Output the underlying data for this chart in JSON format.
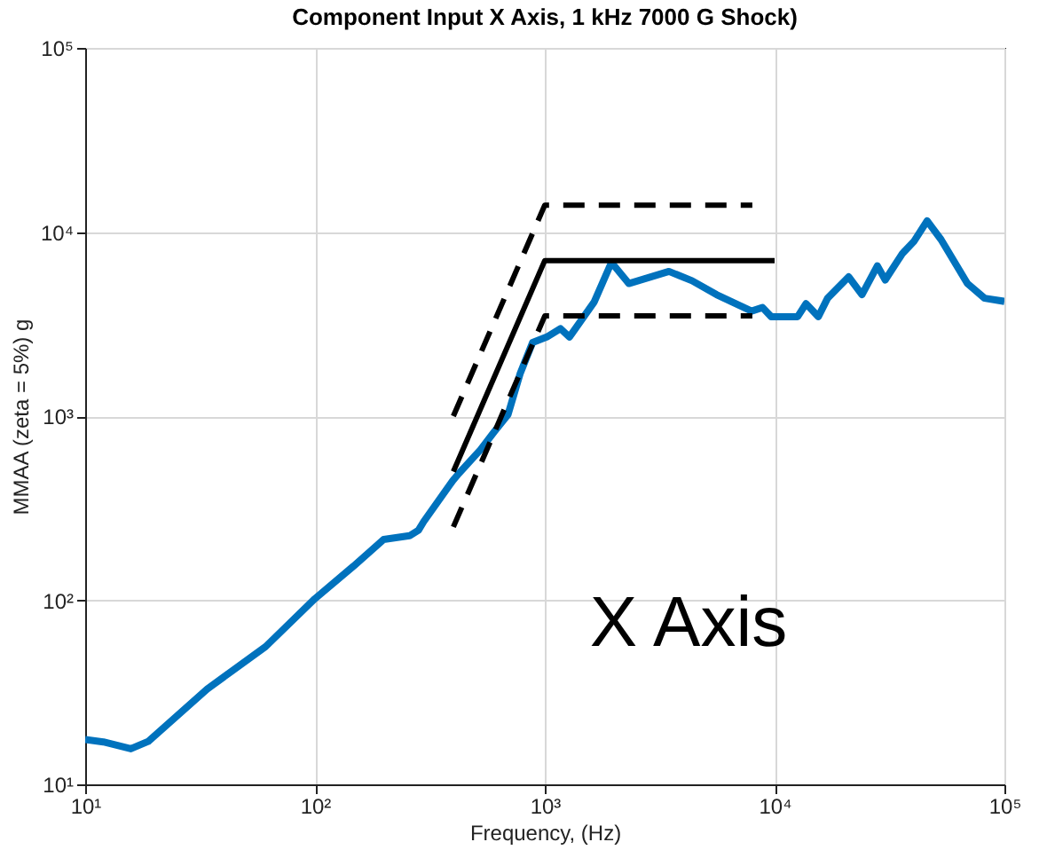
{
  "chart_data": {
    "type": "line",
    "title": "Component Input X Axis, 1 kHz 7000 G Shock)",
    "xlabel": "Frequency, (Hz)",
    "ylabel": "MMAA (zeta = 5%) g",
    "log": "xy",
    "grid": true,
    "xlim": [
      10,
      100000
    ],
    "ylim": [
      10,
      100000
    ],
    "xticks": [
      {
        "value": 10,
        "label": "10¹"
      },
      {
        "value": 100,
        "label": "10²"
      },
      {
        "value": 1000,
        "label": "10³"
      },
      {
        "value": 10000,
        "label": "10⁴"
      },
      {
        "value": 100000,
        "label": "10⁵"
      }
    ],
    "yticks": [
      {
        "value": 10,
        "label": "10¹"
      },
      {
        "value": 100,
        "label": "10²"
      },
      {
        "value": 1000,
        "label": "10³"
      },
      {
        "value": 10000,
        "label": "10⁴"
      },
      {
        "value": 100000,
        "label": "10⁵"
      }
    ],
    "annotations": [
      "X Axis"
    ],
    "series": [
      {
        "color": "#0072bd",
        "line_style": "solid",
        "x": [
          10,
          12,
          15.8,
          18.8,
          34,
          61,
          100,
          147,
          199,
          258,
          282,
          297,
          398,
          423,
          524,
          601,
          692,
          782,
          885,
          1020,
          1170,
          1280,
          1640,
          1950,
          2320,
          3470,
          4370,
          5590,
          7940,
          8850,
          9660,
          12600,
          13700,
          15500,
          17000,
          21000,
          24000,
          28000,
          30300,
          36000,
          40500,
          46100,
          53000,
          69000,
          82000,
          100000
        ],
        "values": [
          17.5,
          17,
          15.6,
          17.1,
          33,
          56,
          102,
          153,
          214,
          224,
          240,
          267,
          447,
          489,
          655,
          819,
          1020,
          1710,
          2510,
          2690,
          2990,
          2690,
          4170,
          6840,
          5250,
          6110,
          5440,
          4570,
          3720,
          3890,
          3470,
          3470,
          4080,
          3470,
          4370,
          5710,
          4570,
          6550,
          5490,
          7650,
          8930,
          11500,
          9100,
          5250,
          4370,
          4200
        ]
      },
      {
        "color": "#000000",
        "line_style": "solid",
        "x": [
          400,
          1000,
          10000
        ],
        "values": [
          500,
          7000,
          7000
        ]
      },
      {
        "color": "#000000",
        "line_style": "dashed",
        "x": [
          400,
          1000,
          8000
        ],
        "values": [
          1000,
          14000,
          14000
        ]
      },
      {
        "color": "#000000",
        "line_style": "dashed",
        "x": [
          400,
          1000,
          8000
        ],
        "values": [
          250,
          3500,
          3500
        ]
      }
    ]
  }
}
